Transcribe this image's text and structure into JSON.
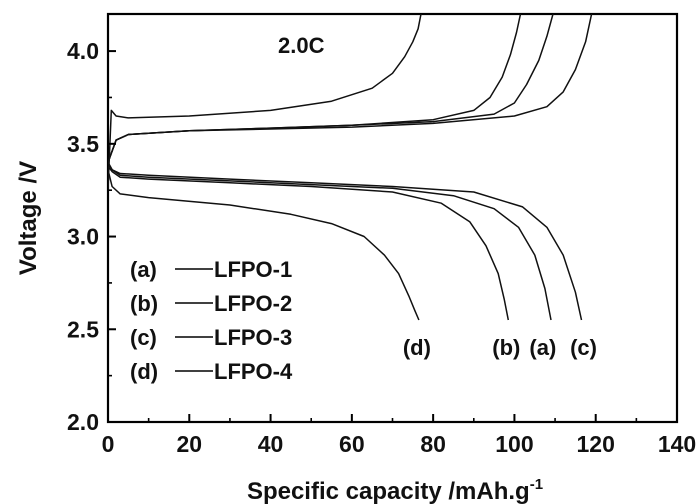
{
  "chart_data": {
    "type": "line",
    "annotation": "2.0C",
    "xlabel": "Specific capacity /mAh.g",
    "xlabel_sup": "-1",
    "ylabel": "Voltage /V",
    "xlim": [
      0,
      140
    ],
    "ylim": [
      2.0,
      4.2
    ],
    "xticks": [
      0,
      20,
      40,
      60,
      80,
      100,
      120,
      140
    ],
    "yticks": [
      2.0,
      2.5,
      3.0,
      3.5,
      4.0
    ],
    "xtick_labels": [
      "0",
      "20",
      "40",
      "60",
      "80",
      "100",
      "120",
      "140"
    ],
    "ytick_labels": [
      "2.0",
      "2.5",
      "3.0",
      "3.5",
      "4.0"
    ],
    "legend": [
      {
        "id": "a",
        "label": "(a)",
        "name": "LFPO-1"
      },
      {
        "id": "b",
        "label": "(b)",
        "name": "LFPO-2"
      },
      {
        "id": "c",
        "label": "(c)",
        "name": "LFPO-3"
      },
      {
        "id": "d",
        "label": "(d)",
        "name": "LFPO-4"
      }
    ],
    "curve_labels": [
      {
        "text": "(d)",
        "x": 76,
        "y": 2.36
      },
      {
        "text": "(b)",
        "x": 98,
        "y": 2.36
      },
      {
        "text": "(a)",
        "x": 107,
        "y": 2.36
      },
      {
        "text": "(c)",
        "x": 117,
        "y": 2.36
      }
    ],
    "series": [
      {
        "id": "a",
        "part": "charge",
        "x": [
          0,
          2,
          5,
          20,
          40,
          60,
          80,
          95,
          100,
          103,
          106,
          108,
          109.5
        ],
        "y": [
          3.4,
          3.52,
          3.55,
          3.57,
          3.585,
          3.6,
          3.62,
          3.66,
          3.72,
          3.82,
          3.95,
          4.08,
          4.2
        ]
      },
      {
        "id": "b",
        "part": "charge",
        "x": [
          0,
          2,
          5,
          20,
          40,
          60,
          80,
          90,
          94,
          97,
          99,
          100.5,
          101.5
        ],
        "y": [
          3.4,
          3.52,
          3.55,
          3.57,
          3.585,
          3.6,
          3.63,
          3.68,
          3.75,
          3.86,
          3.98,
          4.1,
          4.2
        ]
      },
      {
        "id": "c",
        "part": "charge",
        "x": [
          0,
          2,
          5,
          20,
          40,
          60,
          80,
          100,
          108,
          112,
          115,
          117.5,
          119
        ],
        "y": [
          3.4,
          3.52,
          3.55,
          3.57,
          3.58,
          3.59,
          3.61,
          3.65,
          3.7,
          3.78,
          3.9,
          4.05,
          4.2
        ]
      },
      {
        "id": "d",
        "part": "charge",
        "x": [
          0,
          0.8,
          2,
          5,
          20,
          40,
          55,
          65,
          70,
          73,
          75,
          76.3,
          77
        ],
        "y": [
          3.25,
          3.68,
          3.65,
          3.64,
          3.65,
          3.68,
          3.73,
          3.8,
          3.88,
          3.97,
          4.05,
          4.12,
          4.2
        ]
      },
      {
        "id": "a",
        "part": "discharge",
        "x": [
          0,
          1,
          3,
          10,
          30,
          50,
          70,
          85,
          95,
          101,
          105,
          107.5,
          109
        ],
        "y": [
          3.4,
          3.36,
          3.33,
          3.32,
          3.3,
          3.28,
          3.26,
          3.22,
          3.15,
          3.05,
          2.9,
          2.72,
          2.55
        ]
      },
      {
        "id": "b",
        "part": "discharge",
        "x": [
          0,
          1,
          3,
          10,
          30,
          50,
          70,
          82,
          89,
          93,
          96,
          97.5,
          98.5
        ],
        "y": [
          3.38,
          3.35,
          3.32,
          3.31,
          3.29,
          3.27,
          3.24,
          3.18,
          3.08,
          2.95,
          2.8,
          2.66,
          2.55
        ]
      },
      {
        "id": "c",
        "part": "discharge",
        "x": [
          0,
          1,
          3,
          10,
          30,
          50,
          70,
          90,
          102,
          108,
          112,
          115,
          116.5
        ],
        "y": [
          3.4,
          3.36,
          3.34,
          3.33,
          3.31,
          3.29,
          3.27,
          3.24,
          3.16,
          3.05,
          2.9,
          2.7,
          2.55
        ]
      },
      {
        "id": "d",
        "part": "discharge",
        "x": [
          0,
          1,
          3,
          10,
          30,
          45,
          55,
          63,
          68,
          71.5,
          74,
          75.5,
          76.5
        ],
        "y": [
          3.36,
          3.27,
          3.23,
          3.21,
          3.17,
          3.12,
          3.07,
          3.0,
          2.9,
          2.8,
          2.68,
          2.6,
          2.55
        ]
      }
    ]
  }
}
